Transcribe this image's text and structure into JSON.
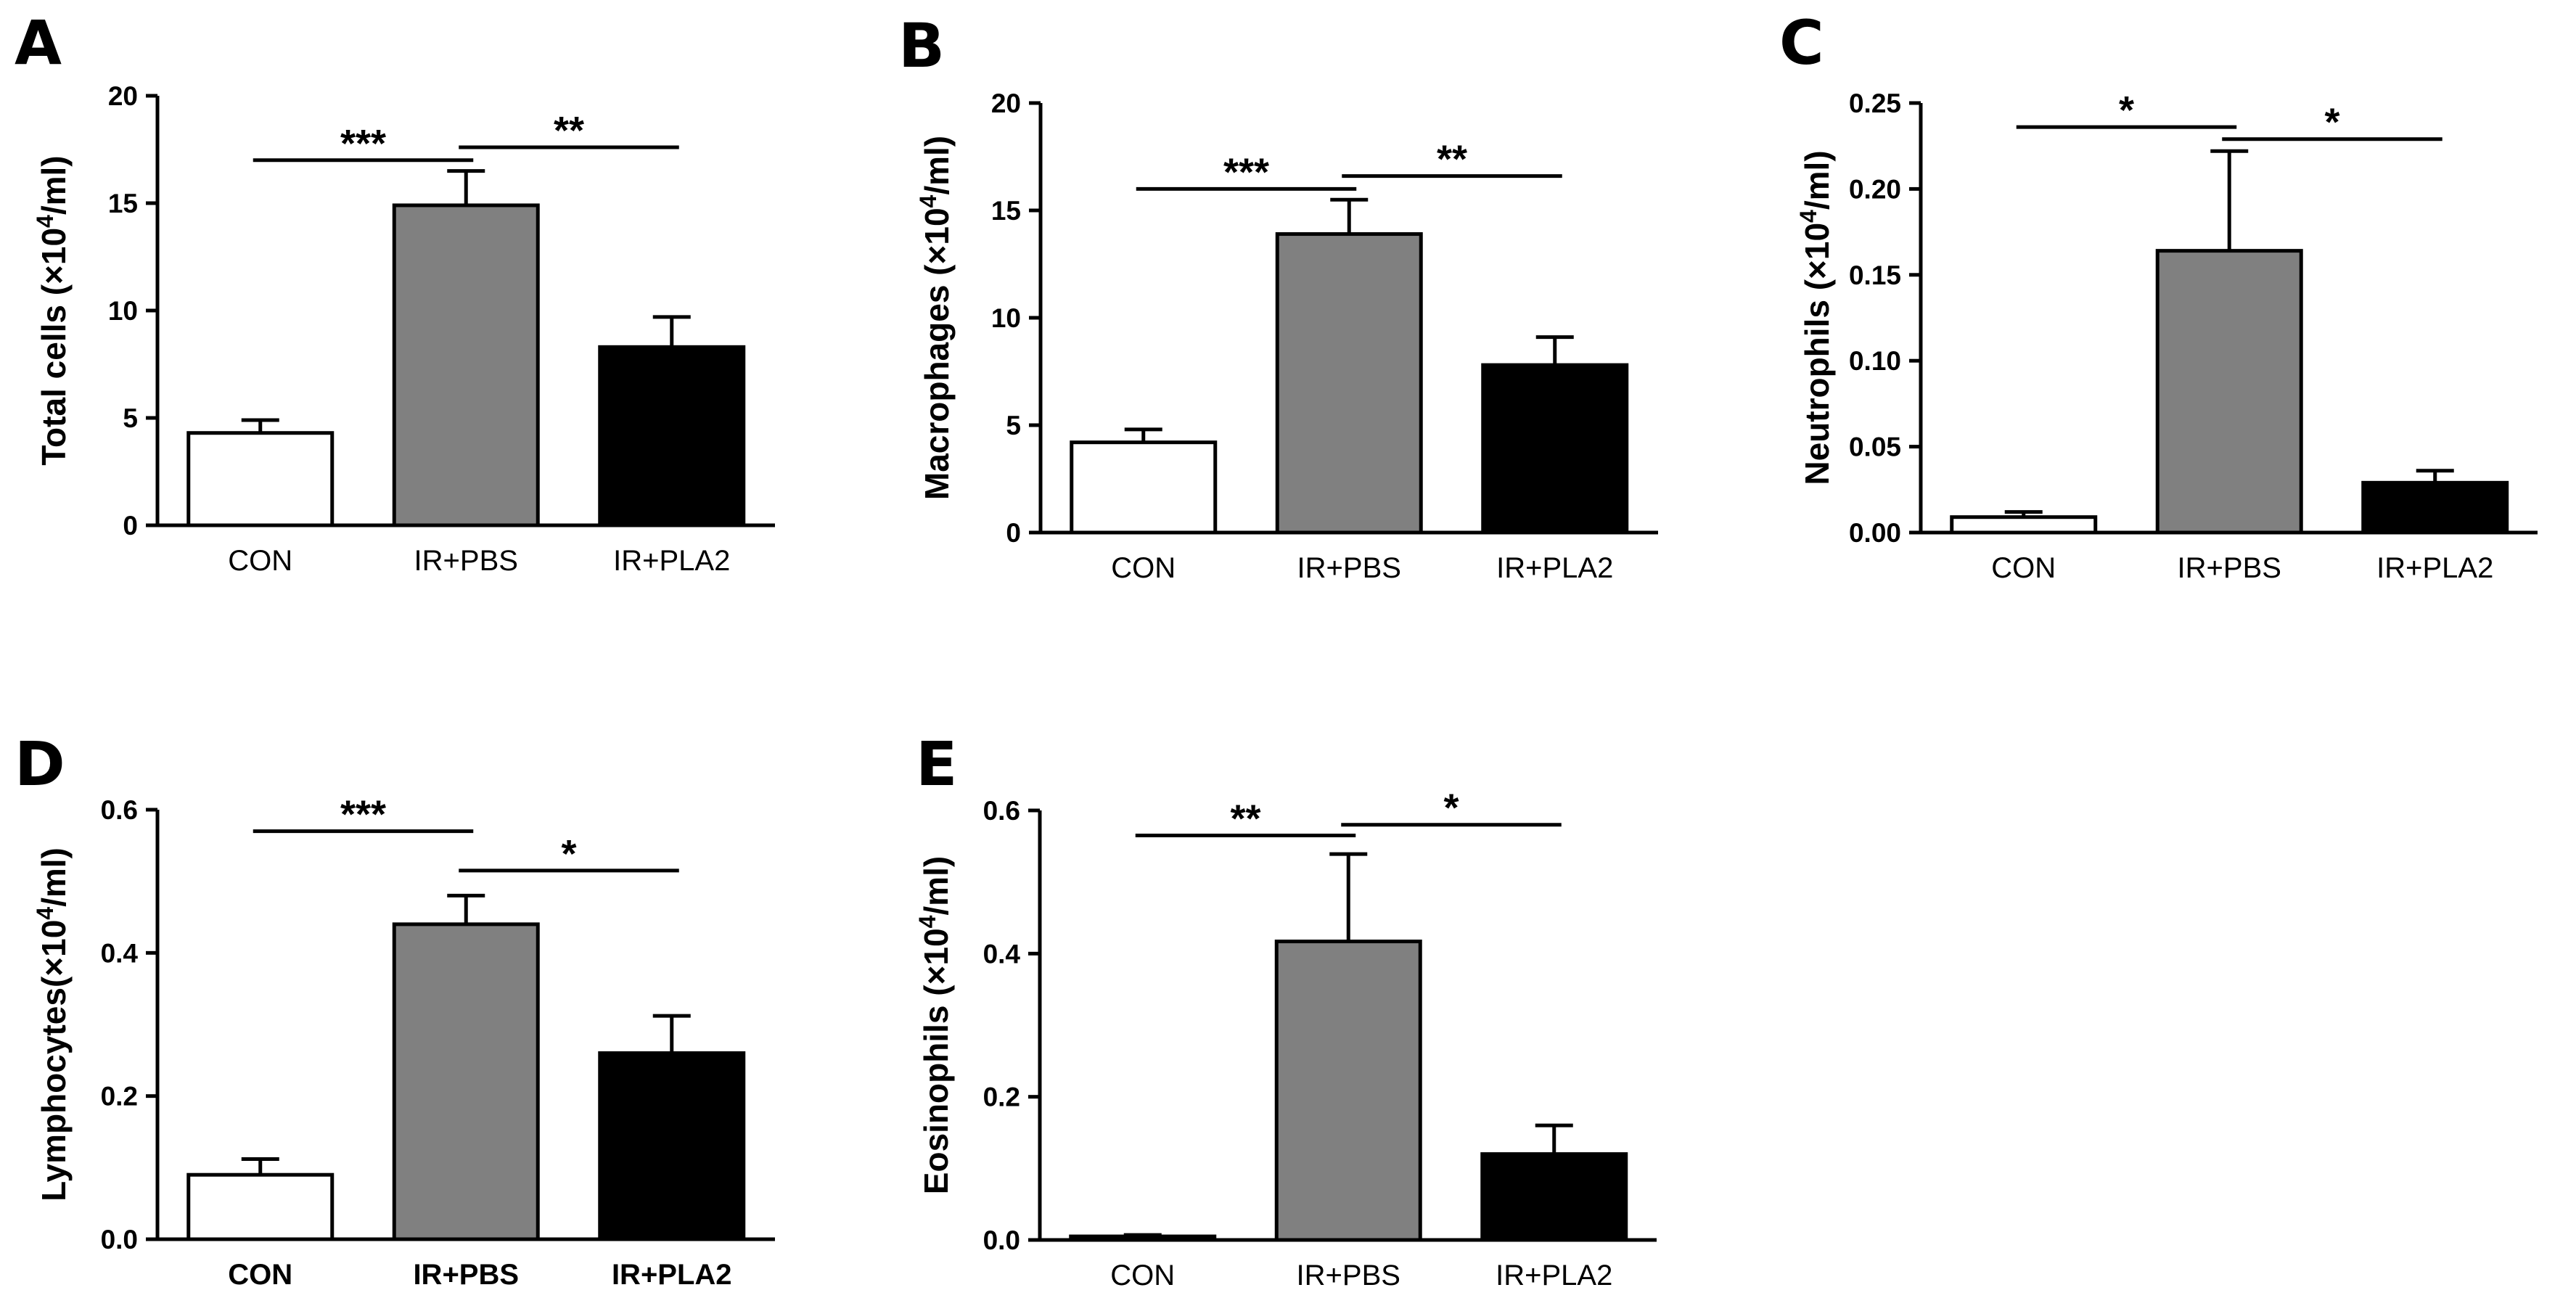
{
  "figure": {
    "colors": {
      "CON": "#ffffff",
      "IR+PBS": "#808080",
      "IR+PLA2": "#000000",
      "axis": "#000000"
    }
  },
  "chart_data": [
    {
      "panel": "A",
      "type": "bar",
      "title": "",
      "xlabel": "",
      "ylabel_prefix": "Total cells (×10",
      "ylabel_exp": "4",
      "ylabel_suffix": "/ml)",
      "categories": [
        "CON",
        "IR+PBS",
        "IR+PLA2"
      ],
      "values": [
        4.3,
        14.9,
        8.3
      ],
      "errors": [
        0.6,
        1.6,
        1.4
      ],
      "ylim": [
        0,
        20
      ],
      "yticks": [
        "0",
        "5",
        "10",
        "15",
        "20"
      ],
      "xtick_bold": false,
      "significance": [
        {
          "from": 0,
          "to": 1,
          "label": "***",
          "y": 17.0
        },
        {
          "from": 1,
          "to": 2,
          "label": "**",
          "y": 17.6
        }
      ]
    },
    {
      "panel": "B",
      "type": "bar",
      "title": "",
      "xlabel": "",
      "ylabel_prefix": "Macrophages (×10",
      "ylabel_exp": "4",
      "ylabel_suffix": "/ml)",
      "categories": [
        "CON",
        "IR+PBS",
        "IR+PLA2"
      ],
      "values": [
        4.2,
        13.9,
        7.8
      ],
      "errors": [
        0.6,
        1.6,
        1.3
      ],
      "ylim": [
        0,
        20
      ],
      "yticks": [
        "0",
        "5",
        "10",
        "15",
        "20"
      ],
      "xtick_bold": false,
      "significance": [
        {
          "from": 0,
          "to": 1,
          "label": "***",
          "y": 16.0
        },
        {
          "from": 1,
          "to": 2,
          "label": "**",
          "y": 16.6
        }
      ]
    },
    {
      "panel": "C",
      "type": "bar",
      "title": "",
      "xlabel": "",
      "ylabel_prefix": "Neutrophils (×10",
      "ylabel_exp": "4",
      "ylabel_suffix": "/ml)",
      "categories": [
        "CON",
        "IR+PBS",
        "IR+PLA2"
      ],
      "values": [
        0.009,
        0.164,
        0.029
      ],
      "errors": [
        0.003,
        0.058,
        0.007
      ],
      "ylim": [
        0,
        0.25
      ],
      "yticks": [
        "0.00",
        "0.05",
        "0.10",
        "0.15",
        "0.20",
        "0.25"
      ],
      "xtick_bold": false,
      "significance": [
        {
          "from": 0,
          "to": 1,
          "label": "*",
          "y": 0.236
        },
        {
          "from": 1,
          "to": 2,
          "label": "*",
          "y": 0.229
        }
      ]
    },
    {
      "panel": "D",
      "type": "bar",
      "title": "",
      "xlabel": "",
      "ylabel_prefix": "Lymphocytes(×10",
      "ylabel_exp": "4",
      "ylabel_suffix": "/ml)",
      "categories": [
        "CON",
        "IR+PBS",
        "IR+PLA2"
      ],
      "values": [
        0.09,
        0.44,
        0.26
      ],
      "errors": [
        0.022,
        0.04,
        0.052
      ],
      "ylim": [
        0,
        0.6
      ],
      "yticks": [
        "0.0",
        "0.2",
        "0.4",
        "0.6"
      ],
      "xtick_bold": true,
      "significance": [
        {
          "from": 0,
          "to": 1,
          "label": "***",
          "y": 0.57
        },
        {
          "from": 1,
          "to": 2,
          "label": "*",
          "y": 0.515
        }
      ]
    },
    {
      "panel": "E",
      "type": "bar",
      "title": "",
      "xlabel": "",
      "ylabel_prefix": "Eosinophils (×10",
      "ylabel_exp": "4",
      "ylabel_suffix": "/ml)",
      "categories": [
        "CON",
        "IR+PBS",
        "IR+PLA2"
      ],
      "values": [
        0.005,
        0.417,
        0.12
      ],
      "errors": [
        0.002,
        0.122,
        0.04
      ],
      "ylim": [
        0,
        0.6
      ],
      "yticks": [
        "0.0",
        "0.2",
        "0.4",
        "0.6"
      ],
      "xtick_bold": false,
      "significance": [
        {
          "from": 0,
          "to": 1,
          "label": "**",
          "y": 0.565
        },
        {
          "from": 1,
          "to": 2,
          "label": "*",
          "y": 0.58
        }
      ]
    }
  ]
}
